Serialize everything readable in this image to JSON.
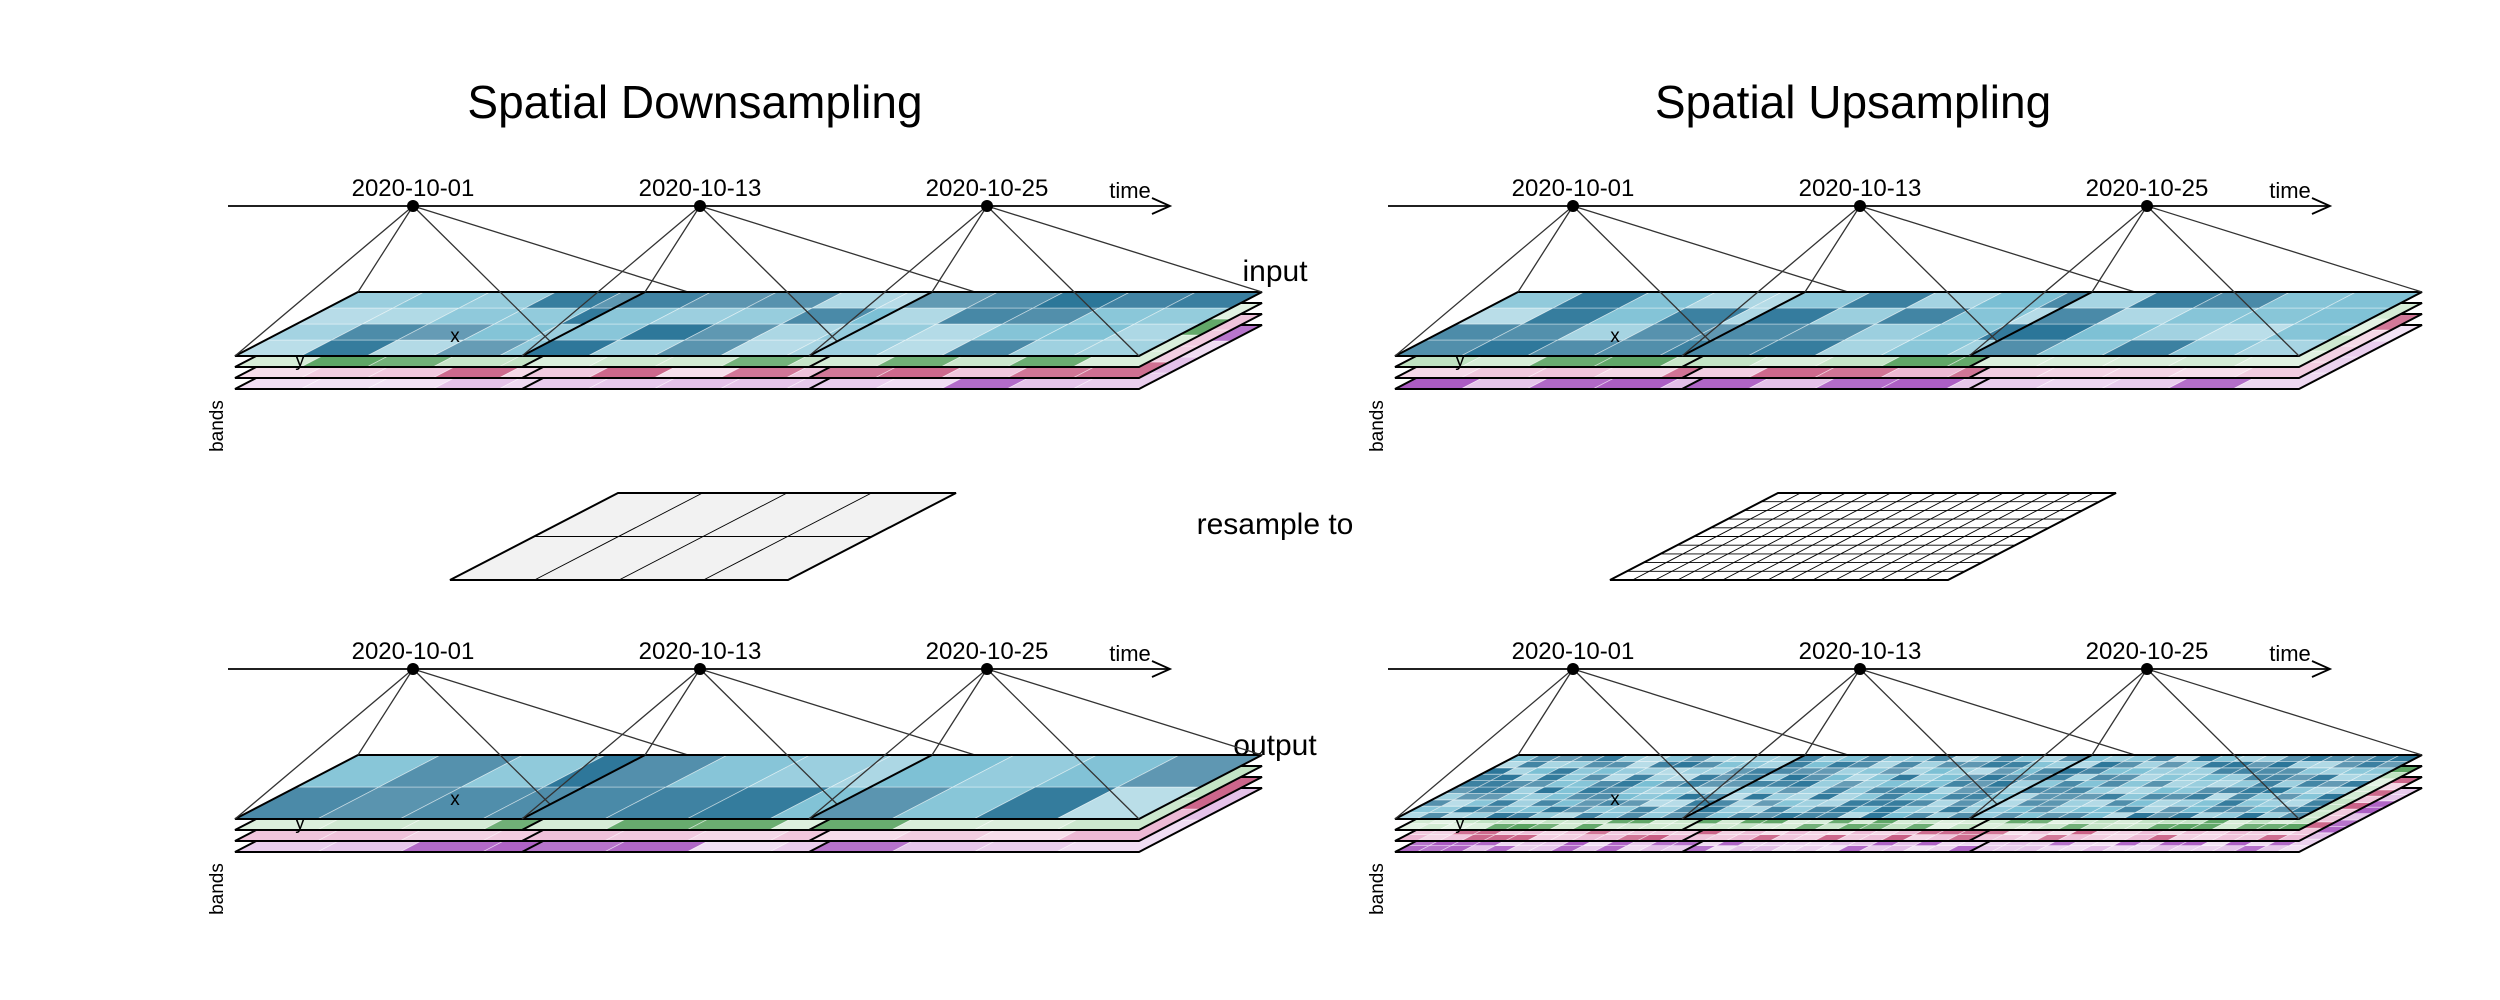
{
  "panels": [
    {
      "title": "Spatial Downsampling",
      "input_grid": [
        5,
        4
      ],
      "target_grid": [
        4,
        2
      ],
      "output_grid": [
        4,
        2
      ]
    },
    {
      "title": "Spatial Upsampling",
      "input_grid": [
        5,
        4
      ],
      "target_grid": [
        15,
        10
      ],
      "output_grid": [
        15,
        10
      ]
    }
  ],
  "row_labels": {
    "input": "input",
    "resample": "resample to",
    "output": "output"
  },
  "dates": [
    "2020-10-01",
    "2020-10-13",
    "2020-10-25"
  ],
  "axis": {
    "time": "time",
    "x": "x",
    "y": "y",
    "bands": "bands"
  },
  "band_colors": [
    "#3aa0bf",
    "#a6d7a9",
    "#e59ac2",
    "#d7a3de"
  ],
  "band_accents": [
    "#1f6e93",
    "#3d9446",
    "#c0426f",
    "#9c3fb8"
  ]
}
